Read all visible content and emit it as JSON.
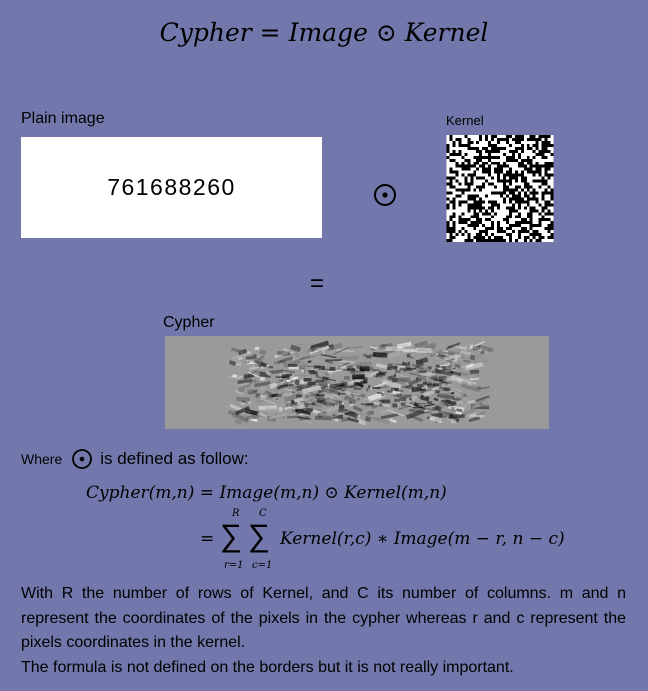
{
  "title": {
    "lhs": "Cypher",
    "eq": "=",
    "image": "Image",
    "op": "⊙",
    "kernel": "Kernel"
  },
  "plain": {
    "label": "Plain image",
    "number": "761688260"
  },
  "kernel": {
    "label": "Kernel"
  },
  "operator": "⊙",
  "equals": "=",
  "cypher": {
    "label": "Cypher"
  },
  "where": {
    "pre": "Where",
    "post": "is defined as follow:"
  },
  "formula": {
    "line1_lhs": "Cypher(m,n)",
    "eq": "=",
    "line1_rhs": "Image(m,n)",
    "op": "⊙",
    "line1_end": "Kernel(m,n)",
    "sum": "∑",
    "upper1": "R",
    "upper2": "C",
    "lower1": "r=1",
    "lower2": "c=1",
    "term": "Kernel(r,c) ∗ Image(m − r, n − c)"
  },
  "paragraph": {
    "p1": "With R the number of rows of Kernel, and C its number of columns. m and n represent the coordinates of the pixels in the cypher whereas r and c represent the pixels coordinates in the kernel.",
    "p2": "The formula is not defined on the borders but it is not really important."
  },
  "colors": {
    "background": "#7278ab",
    "box": "#ffffff",
    "cypher_gray": "#9a9a9a"
  }
}
